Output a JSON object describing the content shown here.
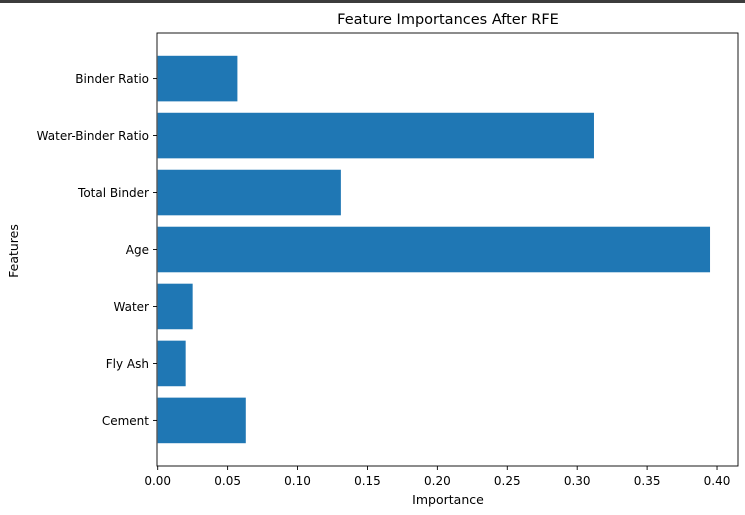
{
  "chart_data": {
    "type": "bar",
    "orientation": "horizontal",
    "title": "Feature Importances After RFE",
    "xlabel": "Importance",
    "ylabel": "Features",
    "categories": [
      "Cement",
      "Fly Ash",
      "Water",
      "Age",
      "Total Binder",
      "Water-Binder Ratio",
      "Binder Ratio"
    ],
    "values": [
      0.063,
      0.02,
      0.025,
      0.395,
      0.131,
      0.312,
      0.057
    ],
    "xlim": [
      -0.0005,
      0.415
    ],
    "xticks": [
      0.0,
      0.05,
      0.1,
      0.15,
      0.2,
      0.25,
      0.3,
      0.35,
      0.4
    ],
    "xtick_labels": [
      "0.00",
      "0.05",
      "0.10",
      "0.15",
      "0.20",
      "0.25",
      "0.30",
      "0.35",
      "0.40"
    ],
    "grid": false,
    "bar_color": "#1f77b4"
  }
}
